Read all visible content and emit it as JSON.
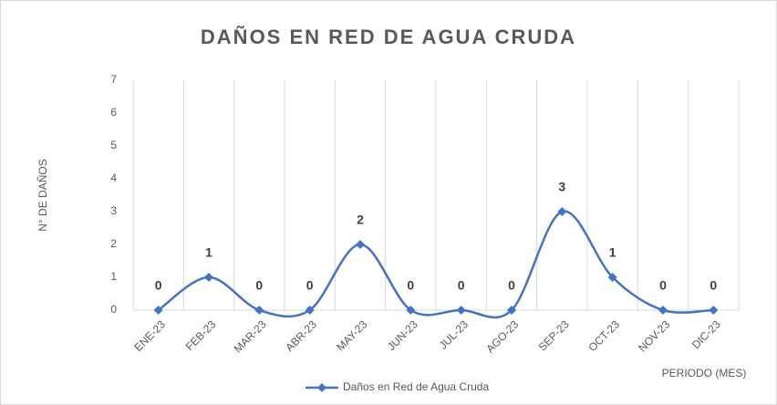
{
  "chart_data": {
    "type": "line",
    "title": "DAÑOS EN RED DE AGUA CRUDA",
    "y_label": "N° DE DAÑOS",
    "x_label": "PERIODO (MES)",
    "categories": [
      "ENE-23",
      "FEB-23",
      "MAR-23",
      "ABR-23",
      "MAY-23",
      "JUN-23",
      "JUL-23",
      "AGO-23",
      "SEP-23",
      "OCT-23",
      "NOV-23",
      "DIC-23"
    ],
    "series": [
      {
        "name": "Daños en Red de Agua Cruda",
        "color": "#4472c4",
        "values": [
          0,
          1,
          0,
          0,
          2,
          0,
          0,
          0,
          3,
          1,
          0,
          0
        ]
      }
    ],
    "ylim": [
      0,
      7
    ],
    "yticks": [
      0,
      1,
      2,
      3,
      4,
      5,
      6,
      7
    ],
    "grid": "vertical",
    "smooth": true,
    "data_labels": true,
    "legend": "bottom"
  }
}
